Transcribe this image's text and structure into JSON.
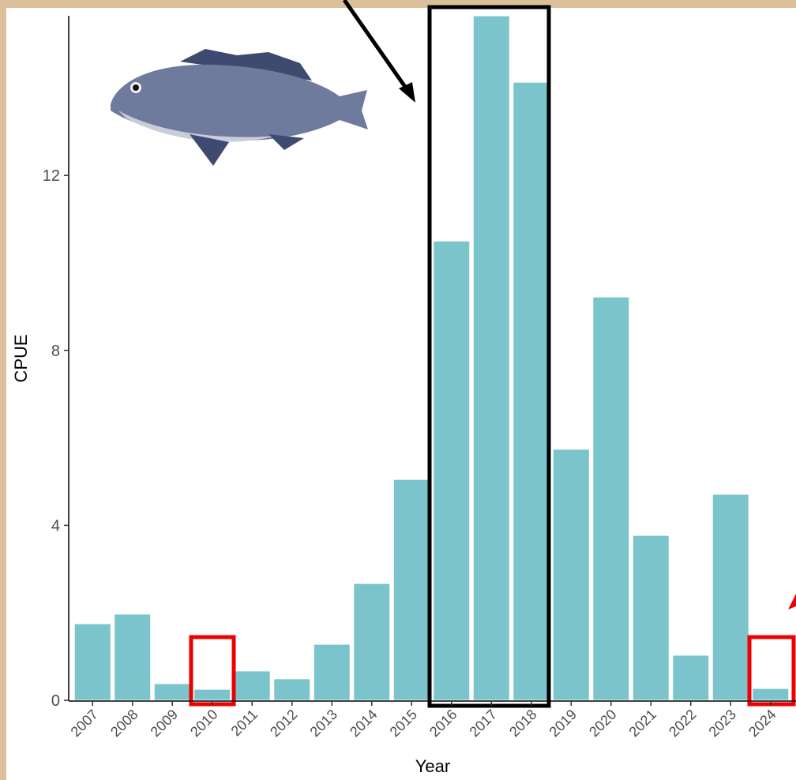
{
  "chart_data": {
    "type": "bar",
    "x_label": "Year",
    "y_label": "CPUE",
    "categories": [
      "2007",
      "2008",
      "2009",
      "2010",
      "2011",
      "2012",
      "2013",
      "2014",
      "2015",
      "2016",
      "2017",
      "2018",
      "2019",
      "2020",
      "2021",
      "2022",
      "2023",
      "2024"
    ],
    "values": [
      1.75,
      1.97,
      0.38,
      0.25,
      0.67,
      0.49,
      1.28,
      2.67,
      5.05,
      10.5,
      15.65,
      14.13,
      5.74,
      9.22,
      3.77,
      1.03,
      4.71,
      0.27
    ],
    "color": "#7bc4cc",
    "ylim": [
      0,
      15.65
    ],
    "yticks": [
      0,
      4,
      8,
      12
    ],
    "grid": false
  }
}
